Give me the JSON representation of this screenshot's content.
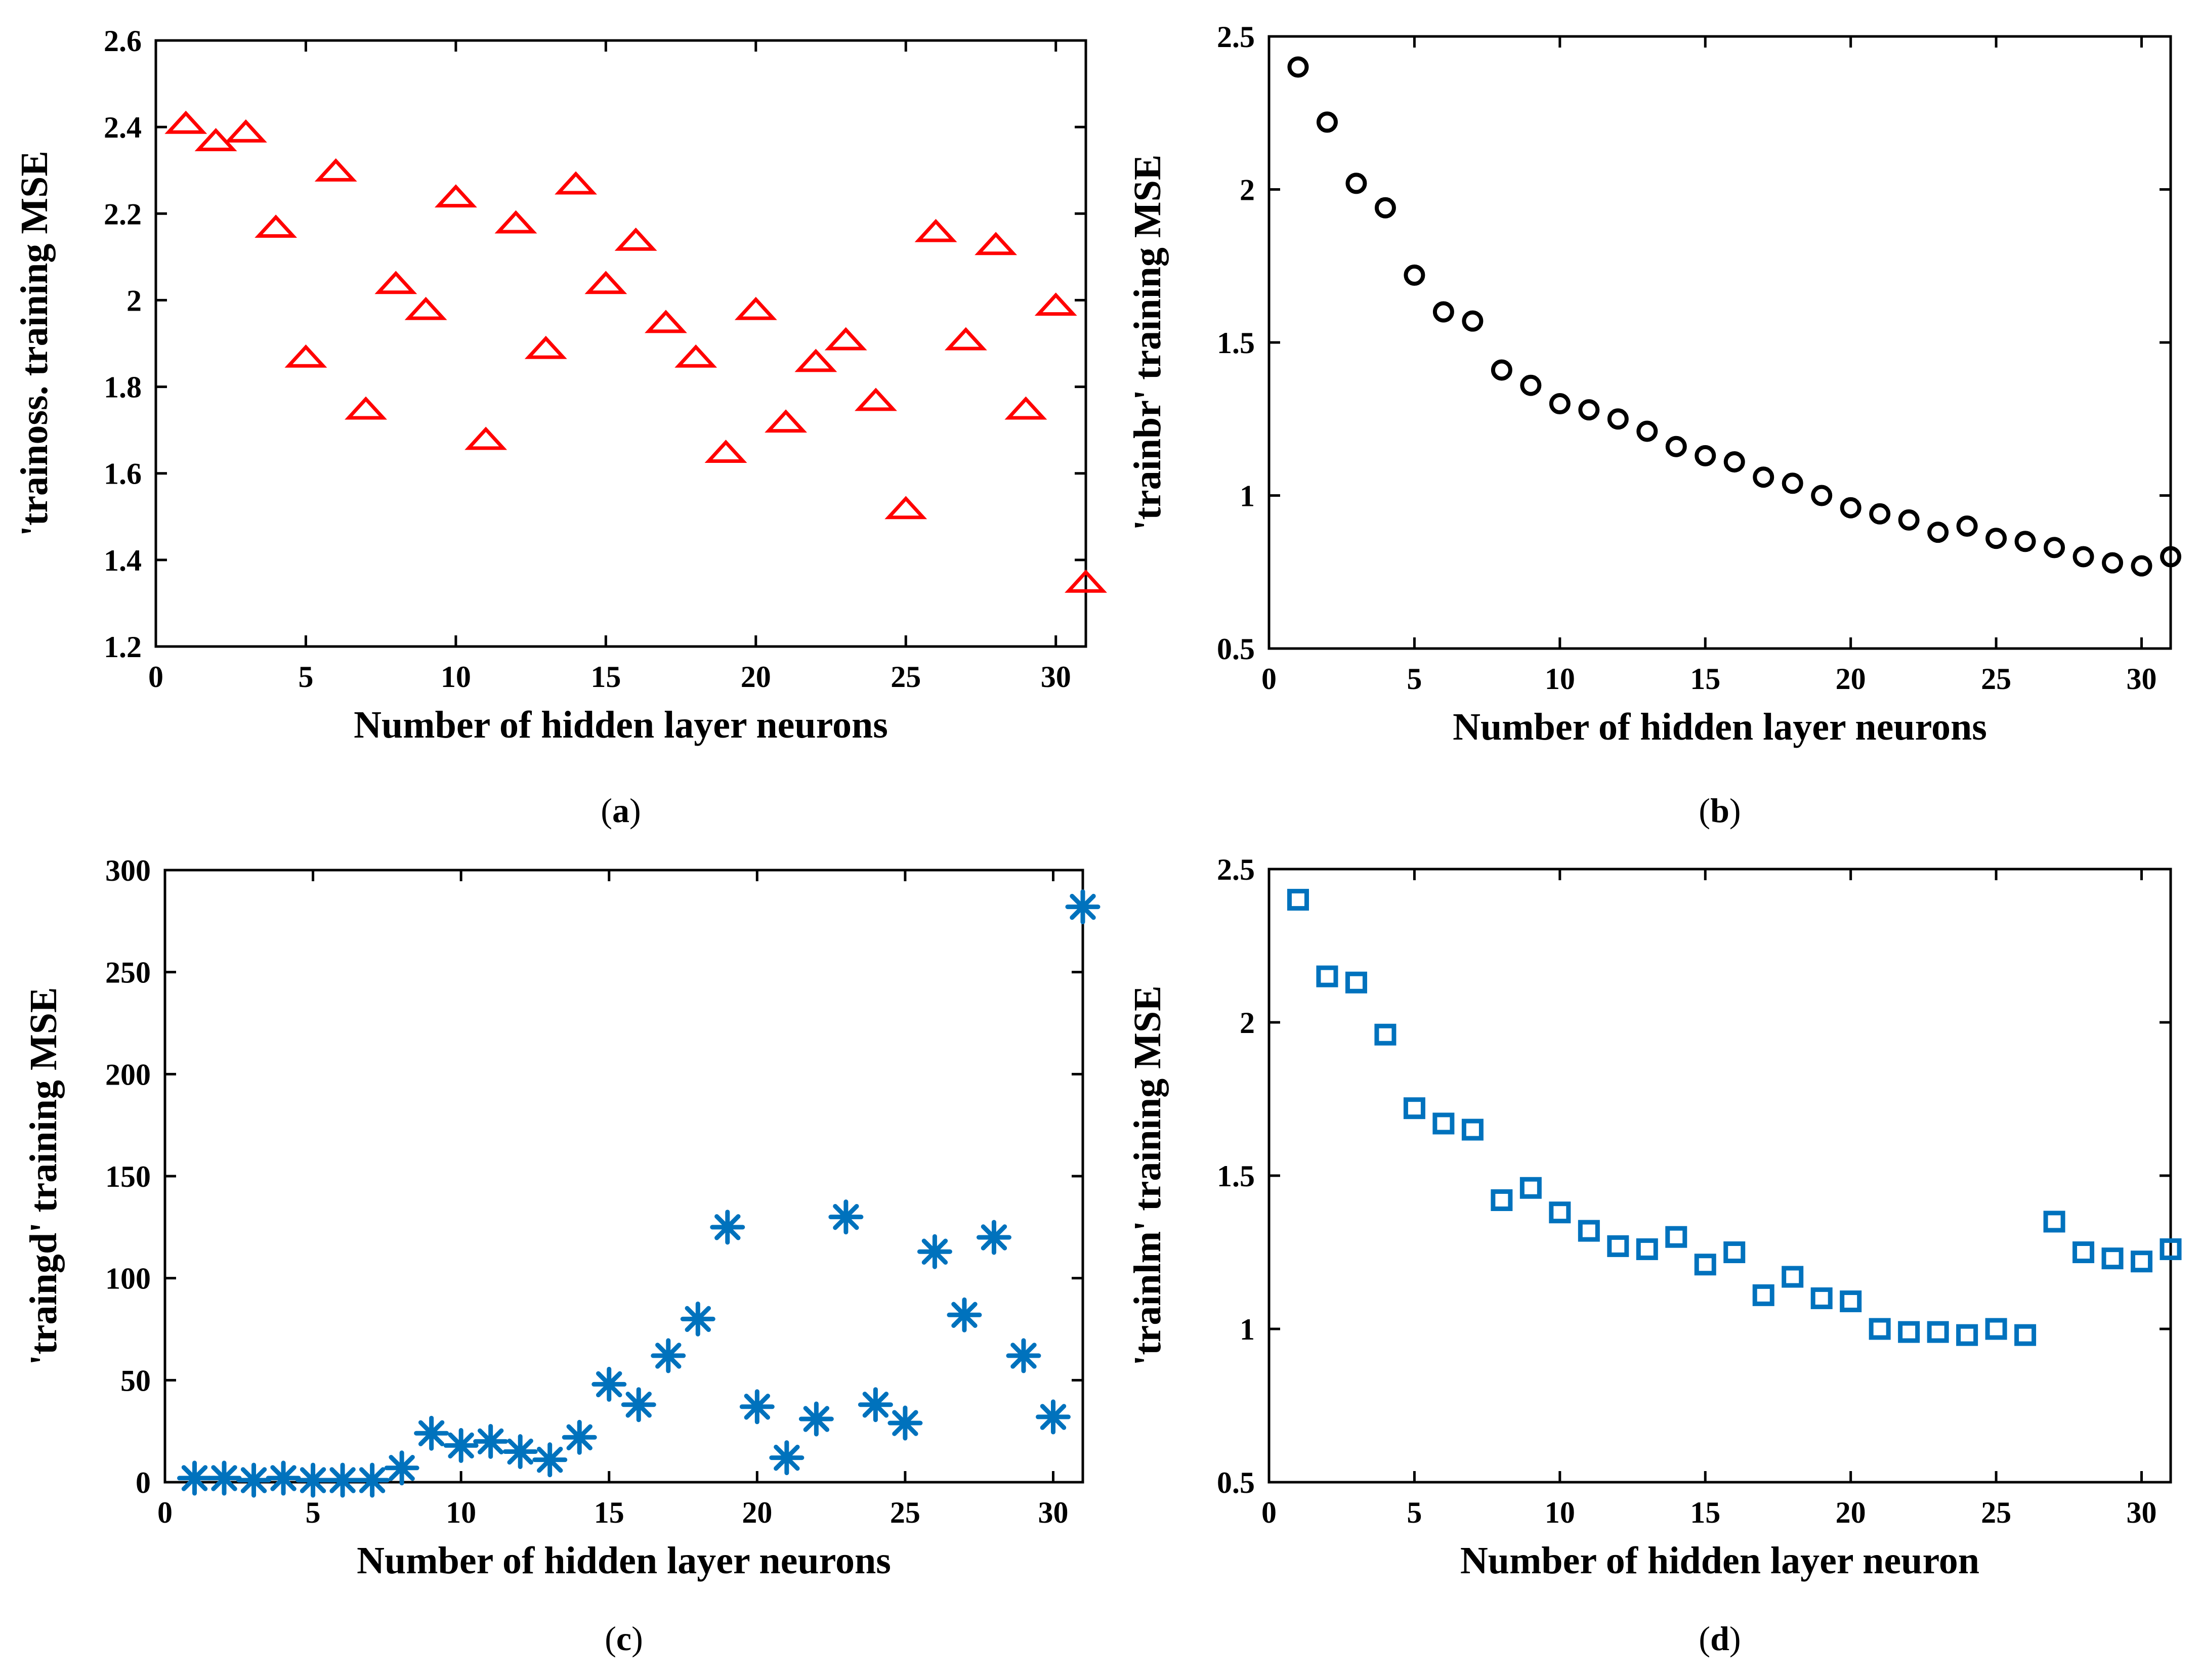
{
  "chart_data": [
    {
      "id": "a",
      "type": "scatter",
      "panel_label": "a",
      "marker": "triangle",
      "color": "#ff0000",
      "xlabel": "Number of hidden layer neurons",
      "ylabel": "'trainoss. training MSE",
      "xlim": [
        0,
        31
      ],
      "ylim": [
        1.2,
        2.6
      ],
      "xticks": [
        0,
        5,
        10,
        15,
        20,
        25,
        30
      ],
      "yticks": [
        1.2,
        1.4,
        1.6,
        1.8,
        2,
        2.2,
        2.4,
        2.6
      ],
      "ytick_labels": [
        "1.2",
        "1.4",
        "1.6",
        "1.8",
        "2",
        "2.2",
        "2.4",
        "2.6"
      ],
      "x": [
        1,
        2,
        3,
        4,
        5,
        6,
        7,
        8,
        9,
        10,
        11,
        12,
        13,
        14,
        15,
        16,
        17,
        18,
        19,
        20,
        21,
        22,
        23,
        24,
        25,
        26,
        27,
        28,
        29,
        30,
        31
      ],
      "values": [
        2.41,
        2.37,
        2.39,
        2.17,
        1.87,
        2.3,
        1.75,
        2.04,
        1.98,
        2.24,
        1.68,
        2.18,
        1.89,
        2.27,
        2.04,
        2.14,
        1.95,
        1.87,
        1.65,
        1.98,
        1.72,
        1.86,
        1.91,
        1.77,
        1.52,
        2.16,
        1.91,
        2.13,
        1.75,
        1.99,
        1.35
      ]
    },
    {
      "id": "b",
      "type": "scatter",
      "panel_label": "b",
      "marker": "circle",
      "color": "#000000",
      "xlabel": "Number of hidden layer neurons",
      "ylabel": "'trainbr' training MSE",
      "xlim": [
        0,
        31
      ],
      "ylim": [
        0.5,
        2.5
      ],
      "xticks": [
        0,
        5,
        10,
        15,
        20,
        25,
        30
      ],
      "yticks": [
        0.5,
        1,
        1.5,
        2,
        2.5
      ],
      "ytick_labels": [
        "0.5",
        "1",
        "1.5",
        "2",
        "2.5"
      ],
      "x": [
        1,
        2,
        3,
        4,
        5,
        6,
        7,
        8,
        9,
        10,
        11,
        12,
        13,
        14,
        15,
        16,
        17,
        18,
        19,
        20,
        21,
        22,
        23,
        24,
        25,
        26,
        27,
        28,
        29,
        30,
        31
      ],
      "values": [
        2.4,
        2.22,
        2.02,
        1.94,
        1.72,
        1.6,
        1.57,
        1.41,
        1.36,
        1.3,
        1.28,
        1.25,
        1.21,
        1.16,
        1.13,
        1.11,
        1.06,
        1.04,
        1.0,
        0.96,
        0.94,
        0.92,
        0.88,
        0.9,
        0.86,
        0.85,
        0.83,
        0.8,
        0.78,
        0.77,
        0.8
      ]
    },
    {
      "id": "c",
      "type": "scatter",
      "panel_label": "c",
      "marker": "asterisk",
      "color": "#0072bd",
      "xlabel": "Number of hidden layer neurons",
      "ylabel": "'traingd' training MSE",
      "xlim": [
        0,
        31
      ],
      "ylim": [
        0,
        300
      ],
      "xticks": [
        0,
        5,
        10,
        15,
        20,
        25,
        30
      ],
      "yticks": [
        0,
        50,
        100,
        150,
        200,
        250,
        300
      ],
      "ytick_labels": [
        "0",
        "50",
        "100",
        "150",
        "200",
        "250",
        "300"
      ],
      "x": [
        1,
        2,
        3,
        4,
        5,
        6,
        7,
        8,
        9,
        10,
        11,
        12,
        13,
        14,
        15,
        16,
        17,
        18,
        19,
        20,
        21,
        22,
        23,
        24,
        25,
        26,
        27,
        28,
        29,
        30,
        31
      ],
      "values": [
        2,
        2,
        1,
        2,
        1,
        1,
        1,
        7,
        24,
        18,
        20,
        15,
        11,
        22,
        48,
        38,
        62,
        80,
        125,
        37,
        12,
        31,
        130,
        38,
        29,
        113,
        82,
        120,
        62,
        32,
        282
      ]
    },
    {
      "id": "d",
      "type": "scatter",
      "panel_label": "d",
      "marker": "square",
      "color": "#0072bd",
      "xlabel": "Number of hidden layer neuron",
      "ylabel": "'trainlm' training MSE",
      "xlim": [
        0,
        31
      ],
      "ylim": [
        0.5,
        2.5
      ],
      "xticks": [
        0,
        5,
        10,
        15,
        20,
        25,
        30
      ],
      "yticks": [
        0.5,
        1,
        1.5,
        2,
        2.5
      ],
      "ytick_labels": [
        "0.5",
        "1",
        "1.5",
        "2",
        "2.5"
      ],
      "x": [
        1,
        2,
        3,
        4,
        5,
        6,
        7,
        8,
        9,
        10,
        11,
        12,
        13,
        14,
        15,
        16,
        17,
        18,
        19,
        20,
        21,
        22,
        23,
        24,
        25,
        26,
        27,
        28,
        29,
        30,
        31
      ],
      "values": [
        2.4,
        2.15,
        2.13,
        1.96,
        1.72,
        1.67,
        1.65,
        1.42,
        1.46,
        1.38,
        1.32,
        1.27,
        1.26,
        1.3,
        1.21,
        1.25,
        1.11,
        1.17,
        1.1,
        1.09,
        1.0,
        0.99,
        0.99,
        0.98,
        1.0,
        0.98,
        1.35,
        1.25,
        1.23,
        1.22,
        1.26
      ]
    }
  ]
}
